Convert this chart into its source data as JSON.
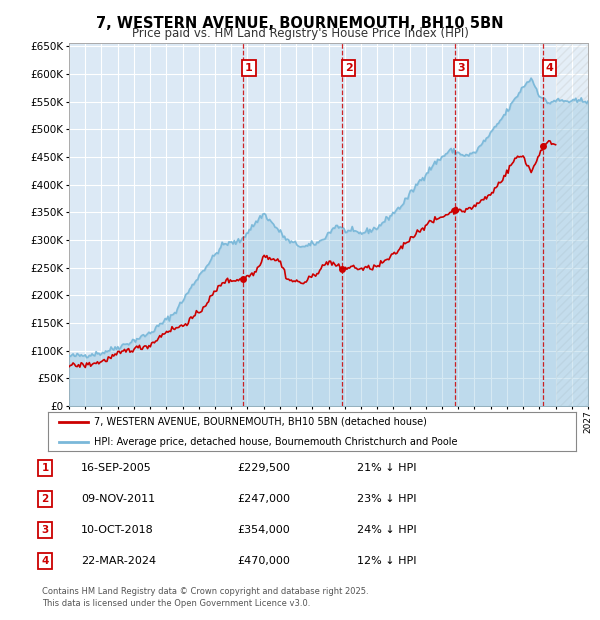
{
  "title": "7, WESTERN AVENUE, BOURNEMOUTH, BH10 5BN",
  "subtitle": "Price paid vs. HM Land Registry's House Price Index (HPI)",
  "background_color": "#ffffff",
  "plot_bg_color": "#dce9f5",
  "hpi_color": "#7ab8d9",
  "price_color": "#cc0000",
  "grid_color": "#ffffff",
  "xmin": 1995.0,
  "xmax": 2027.0,
  "ymin": 0,
  "ymax": 650000,
  "yticks": [
    0,
    50000,
    100000,
    150000,
    200000,
    250000,
    300000,
    350000,
    400000,
    450000,
    500000,
    550000,
    600000,
    650000
  ],
  "transactions": [
    {
      "num": 1,
      "date_str": "16-SEP-2005",
      "x": 2005.71,
      "price": 229500,
      "pct": "21%"
    },
    {
      "num": 2,
      "date_str": "09-NOV-2011",
      "x": 2011.86,
      "price": 247000,
      "pct": "23%"
    },
    {
      "num": 3,
      "date_str": "10-OCT-2018",
      "x": 2018.78,
      "price": 354000,
      "pct": "24%"
    },
    {
      "num": 4,
      "date_str": "22-MAR-2024",
      "x": 2024.22,
      "price": 470000,
      "pct": "12%"
    }
  ],
  "legend_line1": "7, WESTERN AVENUE, BOURNEMOUTH, BH10 5BN (detached house)",
  "legend_line2": "HPI: Average price, detached house, Bournemouth Christchurch and Poole",
  "footer1": "Contains HM Land Registry data © Crown copyright and database right 2025.",
  "footer2": "This data is licensed under the Open Government Licence v3.0.",
  "hatch_after": 2025.0,
  "hpi_anchors": {
    "1995.0": 90000,
    "1996.0": 92000,
    "1997.0": 96000,
    "1998.5": 112000,
    "2000.0": 132000,
    "2001.5": 168000,
    "2003.0": 235000,
    "2004.5": 292000,
    "2005.5": 297000,
    "2007.0": 348000,
    "2008.5": 298000,
    "2009.5": 287000,
    "2010.5": 297000,
    "2011.5": 327000,
    "2012.0": 317000,
    "2013.0": 312000,
    "2014.0": 322000,
    "2015.5": 362000,
    "2016.5": 402000,
    "2017.5": 437000,
    "2018.5": 462000,
    "2019.5": 452000,
    "2020.0": 457000,
    "2021.0": 492000,
    "2022.0": 532000,
    "2023.0": 577000,
    "2023.5": 592000,
    "2024.0": 562000,
    "2024.5": 547000,
    "2025.0": 552000,
    "2026.0": 550000,
    "2027.0": 552000
  },
  "pp_anchors": {
    "1995.0": 73000,
    "1996.0": 74000,
    "1997.0": 80000,
    "1998.5": 100000,
    "2000.0": 110000,
    "2001.0": 135000,
    "2002.0": 145000,
    "2003.0": 168000,
    "2004.5": 225000,
    "2005.71": 229500,
    "2006.5": 242000,
    "2007.0": 272000,
    "2008.0": 262000,
    "2008.5": 228000,
    "2009.5": 222000,
    "2010.5": 247000,
    "2011.0": 262000,
    "2011.86": 247000,
    "2012.5": 252000,
    "2013.0": 247000,
    "2014.0": 252000,
    "2015.0": 272000,
    "2016.0": 302000,
    "2017.0": 327000,
    "2018.0": 342000,
    "2018.78": 354000,
    "2019.0": 357000,
    "2019.5": 352000,
    "2020.0": 362000,
    "2021.0": 382000,
    "2022.0": 422000,
    "2022.5": 447000,
    "2023.0": 452000,
    "2023.5": 422000,
    "2024.22": 470000,
    "2024.8": 478000,
    "2025.0": 472000
  }
}
